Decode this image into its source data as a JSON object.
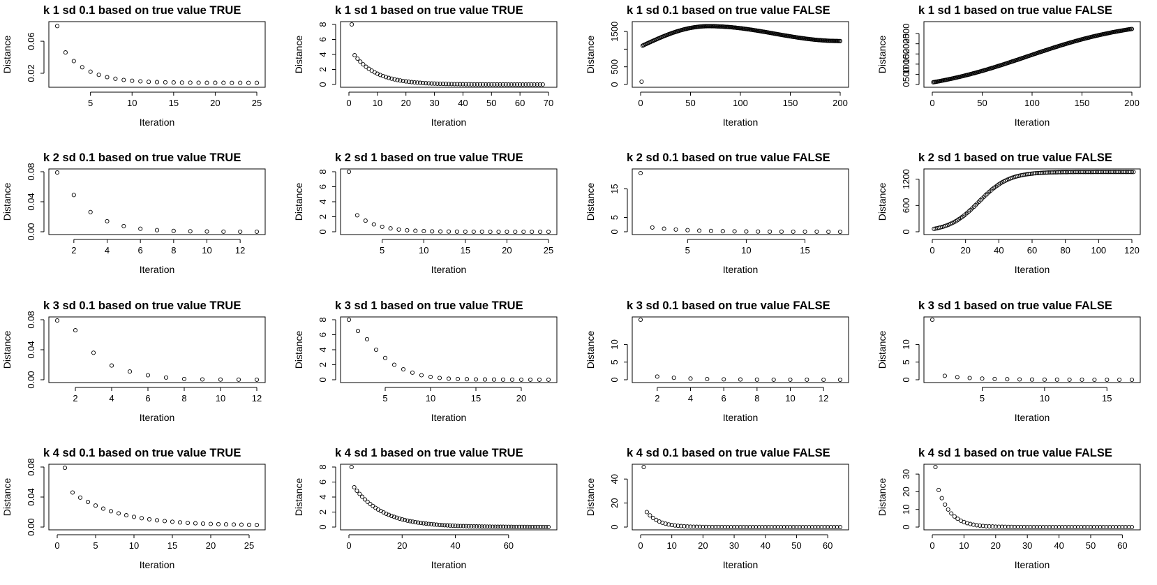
{
  "chart_data": [
    {
      "type": "scatter",
      "title": "k 1 sd 0.1 based on true value TRUE",
      "xlabel": "Iteration",
      "ylabel": "Distance",
      "x_range": [
        1,
        25
      ],
      "xticks": [
        5,
        10,
        15,
        20,
        25
      ],
      "yticks": [
        0.02,
        0.06
      ],
      "ytick_labels": [
        "0.02",
        "0.06"
      ],
      "ylim": [
        0.006,
        0.081
      ],
      "gen": {
        "kind": "decay",
        "n": 25,
        "x0": 1,
        "y0": 0.079,
        "y2": 0.046,
        "yn": 0.008,
        "s": 3.0
      }
    },
    {
      "type": "scatter",
      "title": "k 1 sd 1 based on true value TRUE",
      "xlabel": "Iteration",
      "ylabel": "Distance",
      "x_range": [
        0,
        70
      ],
      "xticks": [
        0,
        10,
        20,
        30,
        40,
        50,
        60,
        70
      ],
      "yticks": [
        0,
        2,
        4,
        6,
        8
      ],
      "ytick_labels": [
        "0",
        "2",
        "4",
        "6",
        "8"
      ],
      "ylim": [
        0,
        8
      ],
      "gen": {
        "kind": "decay",
        "n": 68,
        "x0": 1,
        "y0": 8.0,
        "y2": 3.9,
        "yn": 0.0,
        "s": 8.0
      }
    },
    {
      "type": "scatter",
      "title": "k 1 sd 0.1 based on true value FALSE",
      "xlabel": "Iteration",
      "ylabel": "Distance",
      "x_range": [
        0,
        200
      ],
      "xticks": [
        0,
        50,
        100,
        150,
        200
      ],
      "yticks": [
        0,
        500,
        1000,
        1500
      ],
      "ytick_labels": [
        "0",
        "500",
        "",
        "1500"
      ],
      "ylim": [
        0,
        1700
      ],
      "gen": {
        "kind": "rise_fall",
        "n": 200,
        "x0": 1,
        "y0": 80,
        "y2": 1100,
        "ypeak": 1650,
        "xpeak": 68,
        "yn": 1230
      }
    },
    {
      "type": "scatter",
      "title": "k 1 sd 1 based on true value FALSE",
      "xlabel": "Iteration",
      "ylabel": "Distance",
      "x_range": [
        0,
        200
      ],
      "xticks": [
        0,
        50,
        100,
        150,
        200
      ],
      "yticks": [
        0,
        500,
        1000,
        1500,
        2000,
        2500
      ],
      "ytick_labels": [
        "0",
        "500",
        "1000",
        "1500",
        "2000",
        "2500"
      ],
      "ylim": [
        0,
        2950
      ],
      "gen": {
        "kind": "logistic",
        "n": 200,
        "x0": 1,
        "y0": 100,
        "ymax": 3200,
        "mid": 95,
        "scale": 55
      }
    },
    {
      "type": "scatter",
      "title": "k 2 sd 0.1 based on true value TRUE",
      "xlabel": "Iteration",
      "ylabel": "Distance",
      "x_range": [
        1,
        13
      ],
      "xticks": [
        2,
        4,
        6,
        8,
        10,
        12
      ],
      "yticks": [
        0,
        0.04,
        0.08
      ],
      "ytick_labels": [
        "0.00",
        "0.04",
        "0.08"
      ],
      "ylim": [
        0,
        0.08
      ],
      "gen": {
        "kind": "decay",
        "n": 13,
        "x0": 1,
        "y0": 0.079,
        "y2": 0.049,
        "yn": 0.0,
        "s": 1.6
      }
    },
    {
      "type": "scatter",
      "title": "k 2 sd 1 based on true value TRUE",
      "xlabel": "Iteration",
      "ylabel": "Distance",
      "x_range": [
        1,
        25
      ],
      "xticks": [
        5,
        10,
        15,
        20,
        25
      ],
      "yticks": [
        0,
        2,
        4,
        6,
        8
      ],
      "ytick_labels": [
        "0",
        "2",
        "4",
        "6",
        "8"
      ],
      "ylim": [
        0,
        8
      ],
      "gen": {
        "kind": "decay",
        "n": 25,
        "x0": 1,
        "y0": 8.0,
        "y2": 2.2,
        "yn": 0.0,
        "s": 2.5
      }
    },
    {
      "type": "scatter",
      "title": "k 2 sd 0.1 based on true value FALSE",
      "xlabel": "Iteration",
      "ylabel": "Distance",
      "x_range": [
        1,
        18
      ],
      "xticks": [
        5,
        10,
        15
      ],
      "yticks": [
        0,
        5,
        15
      ],
      "ytick_labels": [
        "0",
        "5",
        "15"
      ],
      "ylim": [
        0,
        21
      ],
      "gen": {
        "kind": "decay",
        "n": 18,
        "x0": 1,
        "y0": 20.5,
        "y2": 1.5,
        "yn": 0.0,
        "s": 3.0
      }
    },
    {
      "type": "scatter",
      "title": "k 2 sd 1 based on true value FALSE",
      "xlabel": "Iteration",
      "ylabel": "Distance",
      "x_range": [
        0,
        120
      ],
      "xticks": [
        0,
        20,
        40,
        60,
        80,
        100,
        120
      ],
      "yticks": [
        0,
        600,
        1200
      ],
      "ytick_labels": [
        "0",
        "600",
        "1200"
      ],
      "ylim": [
        0,
        1370
      ],
      "gen": {
        "kind": "logistic",
        "n": 121,
        "x0": 1,
        "y0": 60,
        "ymax": 1365,
        "mid": 28,
        "scale": 9
      }
    },
    {
      "type": "scatter",
      "title": "k 3 sd 0.1 based on true value TRUE",
      "xlabel": "Iteration",
      "ylabel": "Distance",
      "x_range": [
        1,
        12
      ],
      "xticks": [
        2,
        4,
        6,
        8,
        10,
        12
      ],
      "yticks": [
        0,
        0.04,
        0.08
      ],
      "ytick_labels": [
        "0.00",
        "0.04",
        "0.08"
      ],
      "ylim": [
        0,
        0.08
      ],
      "gen": {
        "kind": "list",
        "x0": 1,
        "values": [
          0.079,
          0.066,
          0.036,
          0.019,
          0.011,
          0.006,
          0.003,
          0.001,
          0.0005,
          0.0003,
          0.0002,
          0.0001
        ]
      }
    },
    {
      "type": "scatter",
      "title": "k 3 sd 1 based on true value TRUE",
      "xlabel": "Iteration",
      "ylabel": "Distance",
      "x_range": [
        1,
        23
      ],
      "xticks": [
        5,
        10,
        15,
        20
      ],
      "yticks": [
        0,
        2,
        4,
        6,
        8
      ],
      "ytick_labels": [
        "0",
        "2",
        "4",
        "6",
        "8"
      ],
      "ylim": [
        0,
        8
      ],
      "gen": {
        "kind": "list",
        "x0": 1,
        "values": [
          8.0,
          6.5,
          5.4,
          4.0,
          2.9,
          2.0,
          1.4,
          0.95,
          0.6,
          0.38,
          0.24,
          0.15,
          0.1,
          0.07,
          0.05,
          0.04,
          0.03,
          0.02,
          0.015,
          0.01,
          0.008,
          0.006,
          0.005
        ]
      }
    },
    {
      "type": "scatter",
      "title": "k 3 sd 0.1 based on true value FALSE",
      "xlabel": "Iteration",
      "ylabel": "Distance",
      "x_range": [
        1,
        13
      ],
      "xticks": [
        2,
        4,
        6,
        8,
        10,
        12
      ],
      "yticks": [
        0,
        5,
        10
      ],
      "ytick_labels": [
        "0",
        "5",
        "10"
      ],
      "ylim": [
        0,
        17
      ],
      "gen": {
        "kind": "decay",
        "n": 13,
        "x0": 1,
        "y0": 17,
        "y2": 0.9,
        "yn": 0.0,
        "s": 2.0
      }
    },
    {
      "type": "scatter",
      "title": "k 3 sd 1 based on true value FALSE",
      "xlabel": "Iteration",
      "ylabel": "Distance",
      "x_range": [
        1,
        17
      ],
      "xticks": [
        5,
        10,
        15
      ],
      "yticks": [
        0,
        5,
        10
      ],
      "ytick_labels": [
        "0",
        "5",
        "10"
      ],
      "ylim": [
        0,
        17
      ],
      "gen": {
        "kind": "decay",
        "n": 17,
        "x0": 1,
        "y0": 17,
        "y2": 1.1,
        "yn": 0.0,
        "s": 2.5
      }
    },
    {
      "type": "scatter",
      "title": "k 4 sd 0.1 based on true value TRUE",
      "xlabel": "Iteration",
      "ylabel": "Distance",
      "x_range": [
        0,
        26
      ],
      "xticks": [
        0,
        5,
        10,
        15,
        20,
        25
      ],
      "yticks": [
        0,
        0.04,
        0.08
      ],
      "ytick_labels": [
        "0.00",
        "0.04",
        "0.08"
      ],
      "ylim": [
        0,
        0.08
      ],
      "gen": {
        "kind": "decay",
        "n": 26,
        "x0": 1,
        "y0": 0.079,
        "y2": 0.046,
        "yn": 0.002,
        "s": 6.0
      }
    },
    {
      "type": "scatter",
      "title": "k 4 sd 1 based on true value TRUE",
      "xlabel": "Iteration",
      "ylabel": "Distance",
      "x_range": [
        0,
        75
      ],
      "xticks": [
        0,
        20,
        40,
        60
      ],
      "yticks": [
        0,
        2,
        4,
        6,
        8
      ],
      "ytick_labels": [
        "0",
        "2",
        "4",
        "6",
        "8"
      ],
      "ylim": [
        0,
        8
      ],
      "gen": {
        "kind": "decay",
        "n": 75,
        "x0": 1,
        "y0": 8.0,
        "y2": 5.3,
        "yn": 0.0,
        "s": 11.0
      }
    },
    {
      "type": "scatter",
      "title": "k 4 sd 0.1 based on true value FALSE",
      "xlabel": "Iteration",
      "ylabel": "Distance",
      "x_range": [
        0,
        64
      ],
      "xticks": [
        0,
        10,
        20,
        30,
        40,
        50,
        60
      ],
      "yticks": [
        0,
        20,
        40
      ],
      "ytick_labels": [
        "0",
        "20",
        "40"
      ],
      "ylim": [
        0,
        50
      ],
      "gen": {
        "kind": "decay",
        "n": 64,
        "x0": 1,
        "y0": 50,
        "y2": 12.5,
        "yn": 0.0,
        "s": 4.0
      }
    },
    {
      "type": "scatter",
      "title": "k 4 sd 1 based on true value FALSE",
      "xlabel": "Iteration",
      "ylabel": "Distance",
      "x_range": [
        0,
        63
      ],
      "xticks": [
        0,
        10,
        20,
        30,
        40,
        50,
        60
      ],
      "yticks": [
        0,
        10,
        20,
        30
      ],
      "ytick_labels": [
        "0",
        "10",
        "20",
        "30"
      ],
      "ylim": [
        0,
        34
      ],
      "gen": {
        "kind": "decay",
        "n": 63,
        "x0": 1,
        "y0": 34,
        "y2": 21,
        "yn": 0.0,
        "s": 4.0
      }
    }
  ]
}
